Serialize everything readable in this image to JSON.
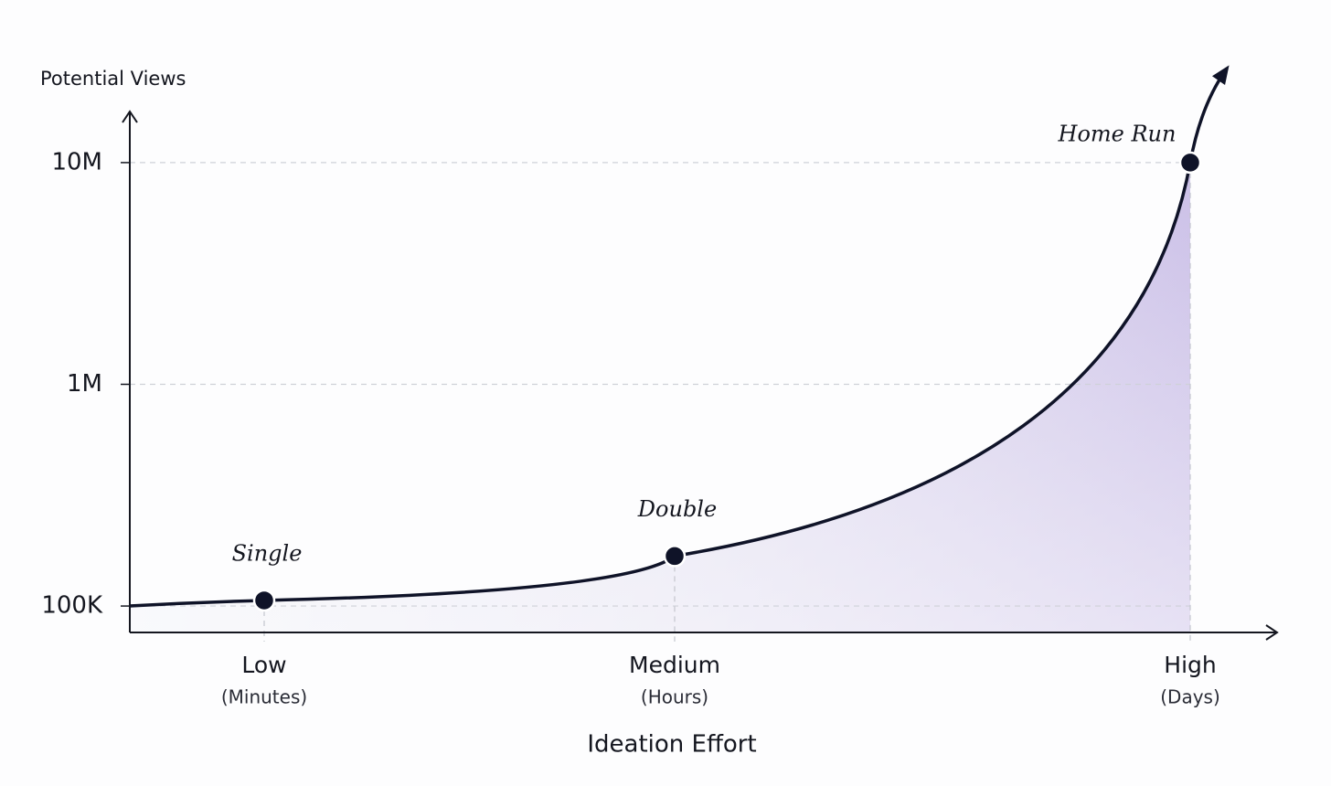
{
  "chart_data": {
    "type": "line",
    "y_label": "Potential Views",
    "x_label": "Ideation Effort",
    "categories": [
      "Low",
      "Medium",
      "High"
    ],
    "category_sublabels": [
      "(Minutes)",
      "(Hours)",
      "(Days)"
    ],
    "values": [
      106000,
      168000,
      10000000
    ],
    "point_labels": [
      "Single",
      "Double",
      "Home Run"
    ],
    "color": "#0f1328",
    "log_scale": true,
    "ylim": [
      76000,
      17000000
    ],
    "yticks": [
      {
        "value": 100000,
        "label": "100K"
      },
      {
        "value": 1000000,
        "label": "1M"
      },
      {
        "value": 10000000,
        "label": "10M"
      }
    ],
    "grid": true
  }
}
